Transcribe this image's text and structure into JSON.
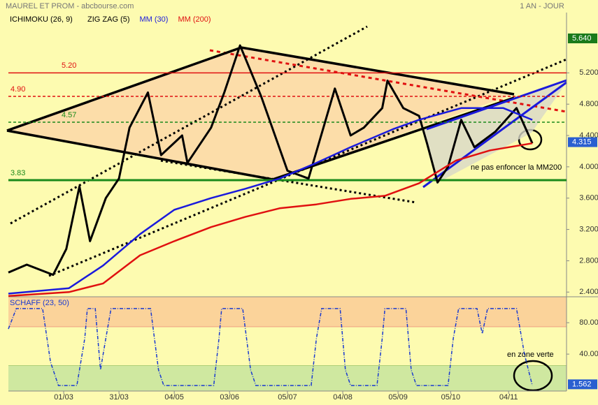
{
  "chart_data": {
    "type": "line",
    "title": "MAUREL ET PROM - abcbourse.com",
    "period": "1 AN - JOUR",
    "ichimoku_label": "ICHIMOKU (26, 9)",
    "xlim": [
      0,
      212
    ],
    "xticks": [
      {
        "value": 21,
        "label": "01/03"
      },
      {
        "value": 42,
        "label": "31/03"
      },
      {
        "value": 63,
        "label": "04/05"
      },
      {
        "value": 84,
        "label": "03/06"
      },
      {
        "value": 106,
        "label": "05/07"
      },
      {
        "value": 127,
        "label": "04/08"
      },
      {
        "value": 148,
        "label": "05/09"
      },
      {
        "value": 168,
        "label": "05/10"
      },
      {
        "value": 190,
        "label": "04/11"
      }
    ],
    "ylim": [
      2.34,
      5.97
    ],
    "yticks": [
      {
        "value": 5.2,
        "label": "5.200"
      },
      {
        "value": 4.8,
        "label": "4.800"
      },
      {
        "value": 4.4,
        "label": "4.400"
      },
      {
        "value": 4.0,
        "label": "4.000"
      },
      {
        "value": 3.6,
        "label": "3.600"
      },
      {
        "value": 3.2,
        "label": "3.200"
      },
      {
        "value": 2.8,
        "label": "2.800"
      },
      {
        "value": 2.4,
        "label": "2.400"
      }
    ],
    "series": [
      {
        "name": "ZIG ZAG (5)",
        "color": "#000000",
        "x": [
          0,
          7,
          17,
          22,
          27,
          31,
          37,
          42,
          46,
          53,
          58,
          66,
          68,
          77,
          82,
          88,
          96,
          106,
          114,
          124,
          130,
          135,
          142,
          144,
          150,
          156,
          159,
          163,
          167,
          172,
          177,
          185,
          193,
          199
        ],
        "values": [
          2.65,
          2.75,
          2.62,
          2.95,
          3.75,
          3.05,
          3.6,
          3.85,
          4.5,
          4.95,
          4.15,
          4.4,
          4.05,
          4.5,
          4.95,
          5.55,
          4.9,
          3.95,
          3.85,
          5.0,
          4.4,
          4.5,
          4.75,
          5.1,
          4.75,
          4.65,
          4.3,
          3.8,
          4.0,
          4.6,
          4.25,
          4.45,
          4.75,
          4.3
        ]
      },
      {
        "name": "MM (30)",
        "color": "#1a1adc",
        "x": [
          0,
          23,
          36,
          50,
          63,
          77,
          90,
          103,
          117,
          130,
          146,
          156,
          172,
          188,
          199
        ],
        "values": [
          2.38,
          2.45,
          2.74,
          3.14,
          3.45,
          3.6,
          3.72,
          3.85,
          4.05,
          4.25,
          4.48,
          4.6,
          4.75,
          4.75,
          4.6
        ]
      },
      {
        "name": "MM (200)",
        "color": "#e01010",
        "x": [
          0,
          23,
          36,
          50,
          63,
          77,
          90,
          103,
          117,
          130,
          143,
          156,
          170,
          183,
          199
        ],
        "values": [
          2.35,
          2.4,
          2.51,
          2.87,
          3.05,
          3.23,
          3.36,
          3.47,
          3.52,
          3.59,
          3.63,
          3.79,
          4.08,
          4.21,
          4.3
        ]
      }
    ],
    "levels": [
      {
        "value": 5.2,
        "label": "5.20",
        "color": "#e01010",
        "dashed": false
      },
      {
        "value": 4.9,
        "label": "4.90",
        "color": "#e01010",
        "dashed": true
      },
      {
        "value": 4.57,
        "label": "4.57",
        "color": "#1a8a1a",
        "dashed": true
      },
      {
        "value": 3.83,
        "label": "3.83",
        "color": "#1a8a1a",
        "dashed": false
      }
    ],
    "price_tags": [
      {
        "value": 5.64,
        "label": "5.640",
        "color": "#1a7a1a"
      },
      {
        "value": 4.315,
        "label": "4.315",
        "color": "#2a5fd0"
      }
    ],
    "annotations": [
      "ne pas enfoncer la MM200",
      "en zone verte"
    ],
    "oscillator": {
      "name": "SCHAFF (23, 50)",
      "color": "#1a3ad0",
      "ylim": [
        -7,
        113
      ],
      "yticks": [
        {
          "value": 80,
          "label": "80.00"
        },
        {
          "value": 40,
          "label": "40.00"
        }
      ],
      "overbought": 75,
      "oversold": 25,
      "x": [
        0,
        3,
        13,
        16,
        19,
        26,
        29,
        30,
        33,
        35,
        37,
        39,
        54,
        57,
        59,
        78,
        80,
        81,
        89,
        92,
        94,
        115,
        117,
        119,
        126,
        128,
        130,
        140,
        142,
        143,
        151,
        153,
        155,
        167,
        169,
        171,
        178,
        180,
        182,
        193,
        196,
        199
      ],
      "values": [
        72,
        98,
        98,
        30,
        0,
        0,
        60,
        98,
        98,
        20,
        60,
        98,
        98,
        20,
        0,
        0,
        60,
        98,
        98,
        20,
        0,
        0,
        60,
        98,
        98,
        20,
        0,
        0,
        60,
        98,
        98,
        20,
        0,
        0,
        60,
        98,
        98,
        66,
        98,
        98,
        40,
        0
      ],
      "tag": {
        "value": 1.562,
        "label": "1.562",
        "color": "#2a5fd0"
      }
    }
  }
}
